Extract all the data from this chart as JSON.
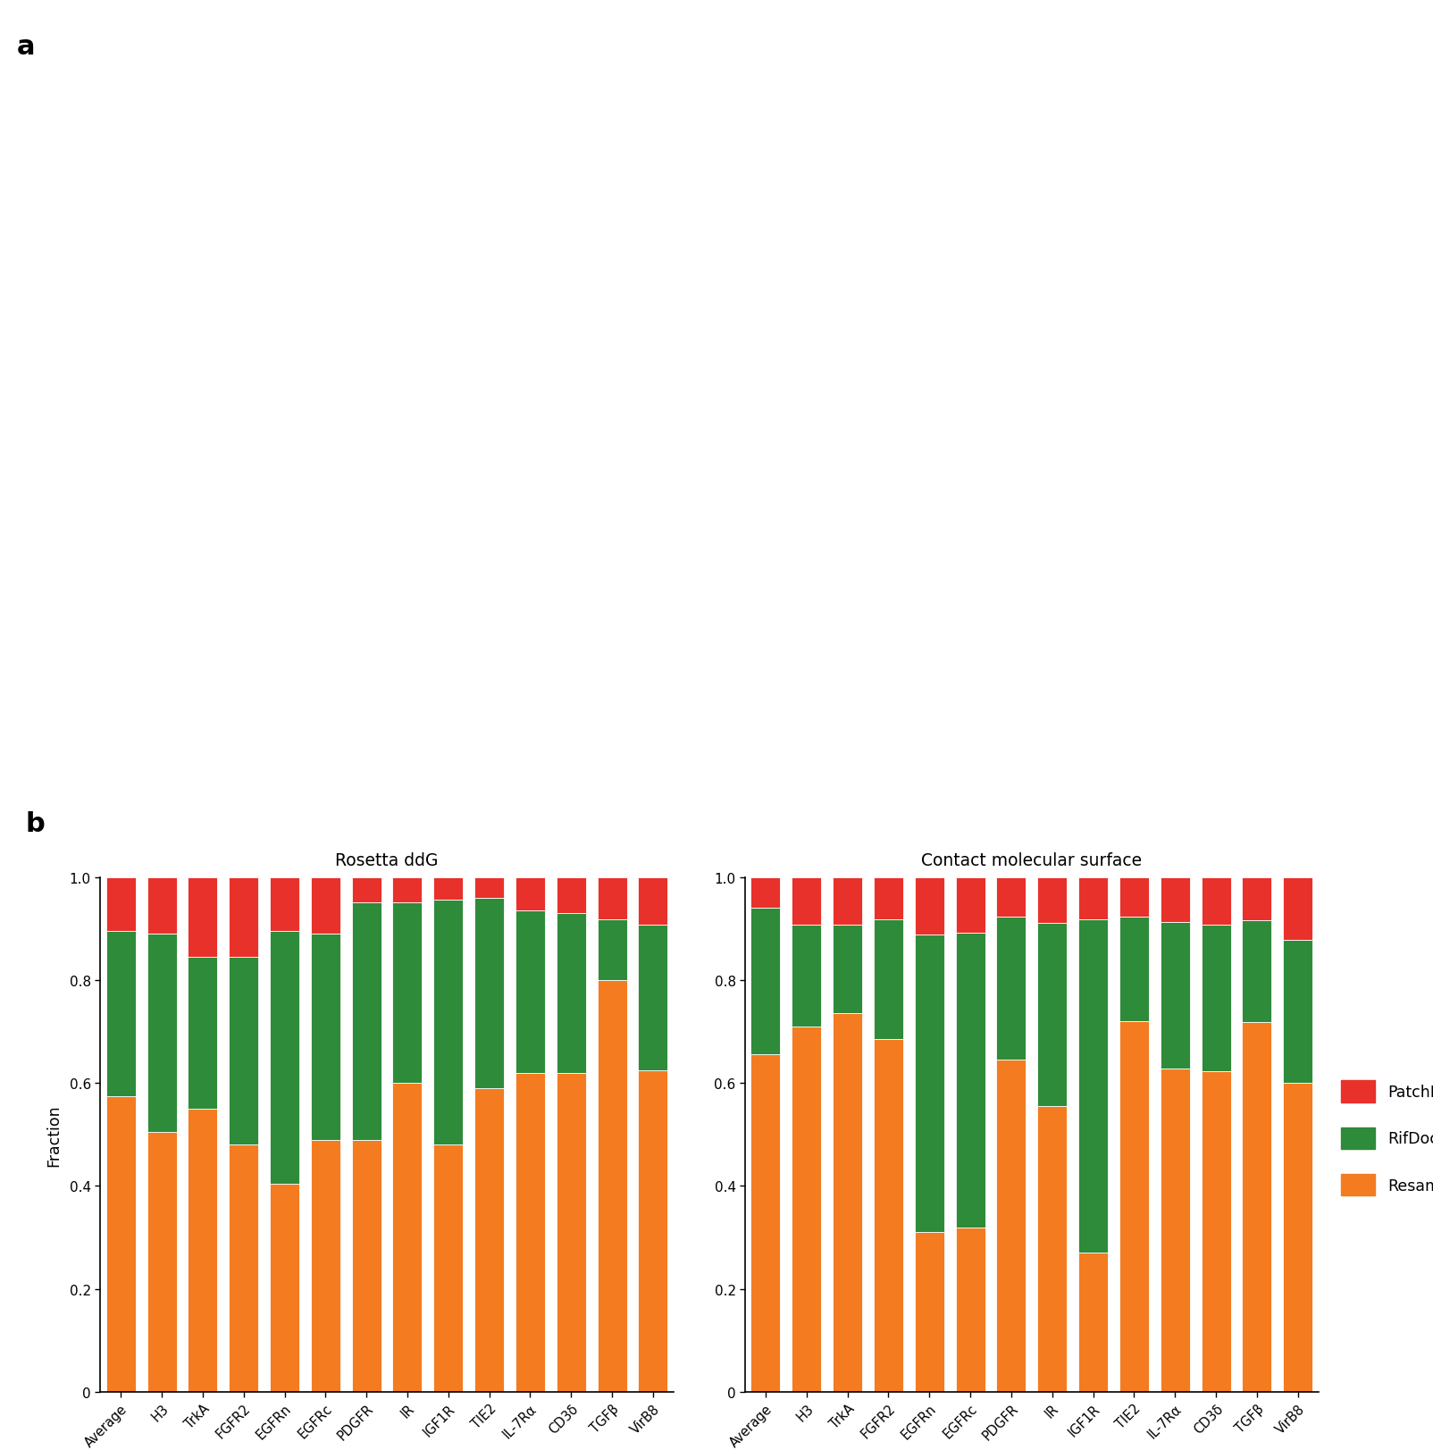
{
  "categories": [
    "Average",
    "H3",
    "TrkA",
    "FGFR2",
    "EGFRn",
    "EGFRc",
    "PDGFR",
    "IR",
    "IGF1R",
    "TIE2",
    "IL-7Rα",
    "CD3δ",
    "TGFβ",
    "VirB8"
  ],
  "ddg": {
    "resampling": [
      0.575,
      0.505,
      0.55,
      0.48,
      0.405,
      0.49,
      0.49,
      0.6,
      0.48,
      0.59,
      0.62,
      0.62,
      0.8,
      0.625
    ],
    "rifdock": [
      0.32,
      0.385,
      0.295,
      0.365,
      0.49,
      0.4,
      0.46,
      0.35,
      0.475,
      0.37,
      0.315,
      0.31,
      0.118,
      0.283
    ],
    "patchdock": [
      0.105,
      0.11,
      0.155,
      0.155,
      0.105,
      0.11,
      0.05,
      0.05,
      0.045,
      0.04,
      0.065,
      0.07,
      0.082,
      0.092
    ]
  },
  "cms": {
    "resampling": [
      0.655,
      0.71,
      0.735,
      0.685,
      0.31,
      0.32,
      0.645,
      0.555,
      0.27,
      0.72,
      0.628,
      0.622,
      0.718,
      0.6
    ],
    "rifdock": [
      0.285,
      0.198,
      0.172,
      0.232,
      0.578,
      0.572,
      0.278,
      0.356,
      0.648,
      0.203,
      0.285,
      0.285,
      0.198,
      0.278
    ],
    "patchdock": [
      0.06,
      0.092,
      0.093,
      0.083,
      0.112,
      0.108,
      0.077,
      0.089,
      0.082,
      0.077,
      0.087,
      0.093,
      0.084,
      0.122
    ]
  },
  "colors": {
    "resampling": "#F47B20",
    "rifdock": "#2E8B3A",
    "patchdock": "#E8312A"
  },
  "ddg_title": "Rosetta ddG",
  "cms_title": "Contact molecular surface",
  "ylabel": "Fraction",
  "bg_color": "#ffffff"
}
